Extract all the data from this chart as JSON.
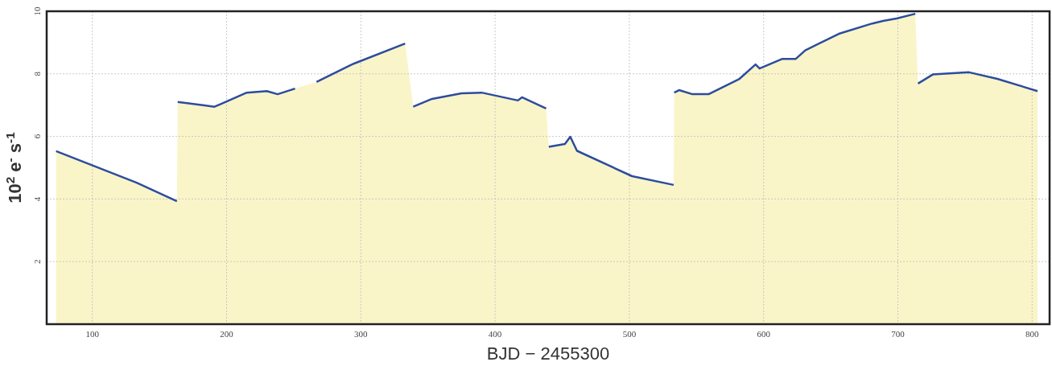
{
  "chart_data": {
    "type": "area",
    "xlabel": "BJD − 2455300",
    "ylabel": "10$^{2}$ e$^{-}$ s$^{-1}$",
    "xlim": [
      66,
      813
    ],
    "ylim": [
      0,
      10
    ],
    "xticks": [
      100,
      200,
      300,
      400,
      500,
      600,
      700,
      800
    ],
    "yticks": [
      2,
      4,
      6,
      8,
      10
    ],
    "grid": true,
    "series": [
      {
        "color": "#faf5c8",
        "x": [
          73,
          133,
          163,
          163.6,
          191,
          196,
          215,
          230,
          238,
          251,
          267,
          290,
          295,
          333,
          339,
          353,
          375,
          390,
          417,
          420,
          438,
          440,
          452,
          456,
          461,
          502,
          533,
          533.4,
          537,
          547,
          559,
          582,
          594,
          597,
          614,
          624,
          631,
          656,
          681,
          689,
          699,
          713,
          715,
          726,
          753,
          774,
          804
        ],
        "values": [
          5.53,
          4.52,
          3.93,
          7.1,
          6.95,
          7.04,
          7.4,
          7.45,
          7.35,
          7.53,
          7.74,
          8.23,
          8.33,
          8.97,
          6.95,
          7.2,
          7.38,
          7.4,
          7.15,
          7.25,
          6.89,
          5.67,
          5.76,
          5.99,
          5.54,
          4.73,
          4.45,
          7.4,
          7.48,
          7.35,
          7.35,
          7.84,
          8.3,
          8.17,
          8.48,
          8.48,
          8.75,
          9.28,
          9.61,
          9.69,
          9.77,
          9.92,
          7.69,
          7.98,
          8.05,
          7.84,
          7.45
        ]
      },
      {
        "type": "line",
        "color": "#2c4c9e",
        "x": [
          73,
          133,
          163,
          163.5,
          163.6,
          191,
          196,
          215,
          230,
          238,
          251,
          259,
          267,
          290,
          295,
          333,
          336,
          339,
          353,
          375,
          390,
          417,
          420,
          438,
          439.5,
          440,
          452,
          456,
          461,
          502,
          533,
          533.2,
          533.4,
          537,
          547,
          559,
          582,
          594,
          597,
          614,
          624,
          631,
          656,
          681,
          689,
          699,
          713,
          714,
          715,
          726,
          753,
          774,
          804
        ],
        "values": [
          5.53,
          4.52,
          3.93,
          null,
          7.1,
          6.95,
          7.04,
          7.4,
          7.45,
          7.35,
          7.53,
          null,
          7.74,
          8.23,
          8.33,
          8.97,
          null,
          6.95,
          7.2,
          7.38,
          7.4,
          7.15,
          7.25,
          6.89,
          null,
          5.67,
          5.76,
          5.99,
          5.54,
          4.73,
          4.45,
          null,
          7.4,
          7.48,
          7.35,
          7.35,
          7.84,
          8.3,
          8.17,
          8.48,
          8.48,
          8.75,
          9.28,
          9.61,
          9.69,
          9.77,
          9.92,
          null,
          7.69,
          7.98,
          8.05,
          7.84,
          7.45
        ]
      }
    ]
  }
}
